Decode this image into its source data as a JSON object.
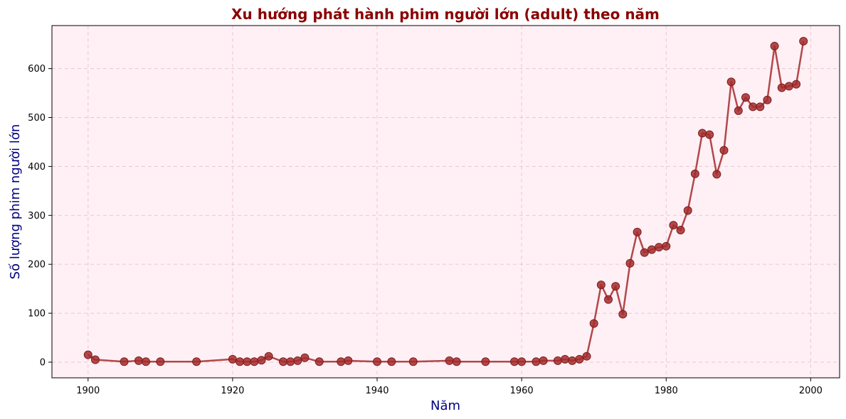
{
  "chart_data": {
    "type": "line",
    "title": "Xu hướng phát hành phim người lớn (adult) theo năm",
    "xlabel": "Năm",
    "ylabel": "Số lượng phim người lớn",
    "xlim": [
      1895,
      2004
    ],
    "ylim": [
      -32,
      688
    ],
    "xticks": [
      1900,
      1920,
      1940,
      1960,
      1980,
      2000
    ],
    "yticks": [
      0,
      100,
      200,
      300,
      400,
      500,
      600
    ],
    "grid": true,
    "colors": {
      "title": "#8b0000",
      "axis_label": "#000080",
      "plot_background": "#fff0f5",
      "line": "#a52a2a",
      "grid": "#e8c8d0"
    },
    "series": [
      {
        "x": [
          1900,
          1901,
          1905,
          1907,
          1908,
          1910,
          1915,
          1920,
          1921,
          1922,
          1923,
          1924,
          1925,
          1927,
          1928,
          1929,
          1930,
          1932,
          1935,
          1936,
          1940,
          1942,
          1945,
          1950,
          1951,
          1955,
          1959,
          1960,
          1962,
          1963,
          1965,
          1966,
          1967,
          1968,
          1969,
          1970,
          1971,
          1972,
          1973,
          1974,
          1975,
          1976,
          1977,
          1978,
          1979,
          1980,
          1981,
          1982,
          1983,
          1984,
          1985,
          1986,
          1987,
          1988,
          1989,
          1990,
          1991,
          1992,
          1993,
          1994,
          1995,
          1996,
          1997,
          1998,
          1999
        ],
        "values": [
          15,
          5,
          1,
          3,
          1,
          1,
          1,
          6,
          1,
          1,
          1,
          4,
          12,
          1,
          1,
          3,
          9,
          1,
          1,
          3,
          1,
          1,
          1,
          3,
          1,
          1,
          1,
          1,
          1,
          3,
          3,
          6,
          3,
          6,
          12,
          79,
          158,
          128,
          155,
          98,
          202,
          266,
          224,
          230,
          235,
          237,
          280,
          270,
          310,
          385,
          468,
          465,
          384,
          433,
          573,
          514,
          541,
          522,
          522,
          536,
          646,
          561,
          564,
          568,
          656
        ]
      }
    ]
  }
}
